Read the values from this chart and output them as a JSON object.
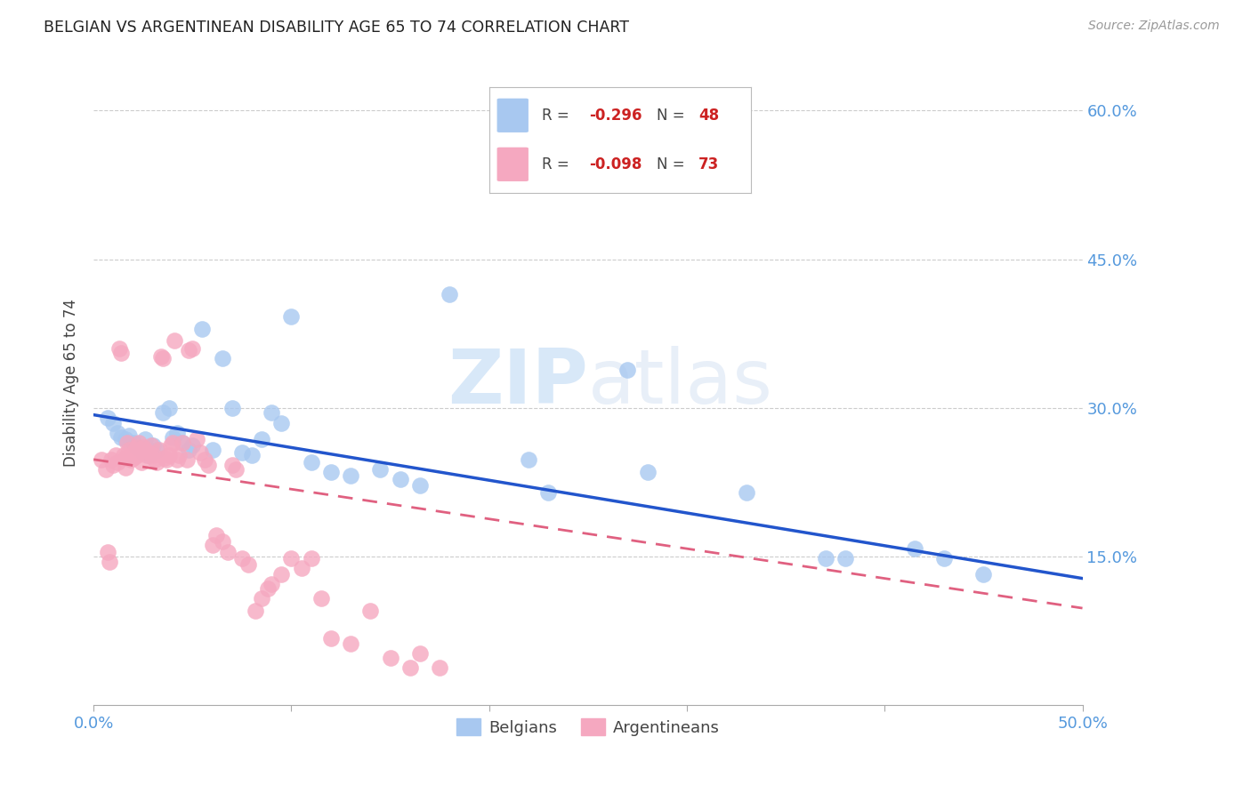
{
  "title": "BELGIAN VS ARGENTINEAN DISABILITY AGE 65 TO 74 CORRELATION CHART",
  "source": "Source: ZipAtlas.com",
  "ylabel": "Disability Age 65 to 74",
  "xlim": [
    0.0,
    0.5
  ],
  "ylim": [
    0.0,
    0.65
  ],
  "y_ticks": [
    0.15,
    0.3,
    0.45,
    0.6
  ],
  "y_tick_labels": [
    "15.0%",
    "30.0%",
    "45.0%",
    "60.0%"
  ],
  "x_ticks": [
    0.0,
    0.1,
    0.2,
    0.3,
    0.4,
    0.5
  ],
  "x_tick_labels": [
    "0.0%",
    "",
    "",
    "",
    "",
    "50.0%"
  ],
  "legend_belgian_r": "R = -0.296",
  "legend_belgian_n": "N = 48",
  "legend_arg_r": "R = -0.098",
  "legend_arg_n": "N = 73",
  "belgian_color": "#A8C8F0",
  "argentinean_color": "#F5A8C0",
  "trend_belgian_color": "#2255CC",
  "trend_arg_color": "#E06080",
  "watermark_color": "#D8E8F8",
  "belgians_scatter_x": [
    0.007,
    0.01,
    0.012,
    0.014,
    0.016,
    0.018,
    0.02,
    0.022,
    0.024,
    0.025,
    0.026,
    0.028,
    0.03,
    0.032,
    0.035,
    0.038,
    0.04,
    0.042,
    0.045,
    0.048,
    0.05,
    0.055,
    0.06,
    0.065,
    0.07,
    0.075,
    0.08,
    0.085,
    0.09,
    0.095,
    0.1,
    0.11,
    0.12,
    0.13,
    0.145,
    0.155,
    0.165,
    0.18,
    0.22,
    0.23,
    0.27,
    0.28,
    0.33,
    0.37,
    0.38,
    0.415,
    0.43,
    0.45
  ],
  "belgians_scatter_y": [
    0.29,
    0.285,
    0.275,
    0.27,
    0.268,
    0.272,
    0.265,
    0.26,
    0.258,
    0.255,
    0.268,
    0.252,
    0.262,
    0.258,
    0.295,
    0.3,
    0.27,
    0.275,
    0.265,
    0.258,
    0.262,
    0.38,
    0.258,
    0.35,
    0.3,
    0.255,
    0.252,
    0.268,
    0.295,
    0.285,
    0.392,
    0.245,
    0.235,
    0.232,
    0.238,
    0.228,
    0.222,
    0.415,
    0.248,
    0.215,
    0.338,
    0.235,
    0.215,
    0.148,
    0.148,
    0.158,
    0.148,
    0.132
  ],
  "argentineans_scatter_x": [
    0.004,
    0.006,
    0.007,
    0.008,
    0.009,
    0.01,
    0.011,
    0.012,
    0.013,
    0.014,
    0.015,
    0.016,
    0.016,
    0.017,
    0.018,
    0.019,
    0.02,
    0.021,
    0.022,
    0.022,
    0.023,
    0.024,
    0.025,
    0.026,
    0.027,
    0.028,
    0.029,
    0.03,
    0.031,
    0.032,
    0.033,
    0.034,
    0.035,
    0.036,
    0.037,
    0.038,
    0.039,
    0.04,
    0.041,
    0.042,
    0.043,
    0.045,
    0.047,
    0.048,
    0.05,
    0.052,
    0.054,
    0.056,
    0.058,
    0.06,
    0.062,
    0.065,
    0.068,
    0.07,
    0.072,
    0.075,
    0.078,
    0.082,
    0.085,
    0.088,
    0.09,
    0.095,
    0.1,
    0.105,
    0.11,
    0.115,
    0.12,
    0.13,
    0.14,
    0.15,
    0.16,
    0.165,
    0.175
  ],
  "argentineans_scatter_y": [
    0.248,
    0.238,
    0.155,
    0.145,
    0.248,
    0.242,
    0.252,
    0.245,
    0.36,
    0.355,
    0.252,
    0.24,
    0.25,
    0.265,
    0.258,
    0.248,
    0.25,
    0.258,
    0.26,
    0.252,
    0.265,
    0.245,
    0.26,
    0.258,
    0.252,
    0.255,
    0.262,
    0.252,
    0.248,
    0.245,
    0.258,
    0.352,
    0.35,
    0.25,
    0.248,
    0.252,
    0.262,
    0.265,
    0.368,
    0.248,
    0.252,
    0.265,
    0.248,
    0.358,
    0.36,
    0.268,
    0.255,
    0.248,
    0.242,
    0.162,
    0.172,
    0.165,
    0.155,
    0.242,
    0.238,
    0.148,
    0.142,
    0.095,
    0.108,
    0.118,
    0.122,
    0.132,
    0.148,
    0.138,
    0.148,
    0.108,
    0.068,
    0.062,
    0.095,
    0.048,
    0.038,
    0.052,
    0.038
  ],
  "belgian_trend_x0": 0.0,
  "belgian_trend_y0": 0.293,
  "belgian_trend_x1": 0.5,
  "belgian_trend_y1": 0.128,
  "arg_trend_x0": 0.0,
  "arg_trend_y0": 0.248,
  "arg_trend_x1": 0.5,
  "arg_trend_y1": 0.098
}
